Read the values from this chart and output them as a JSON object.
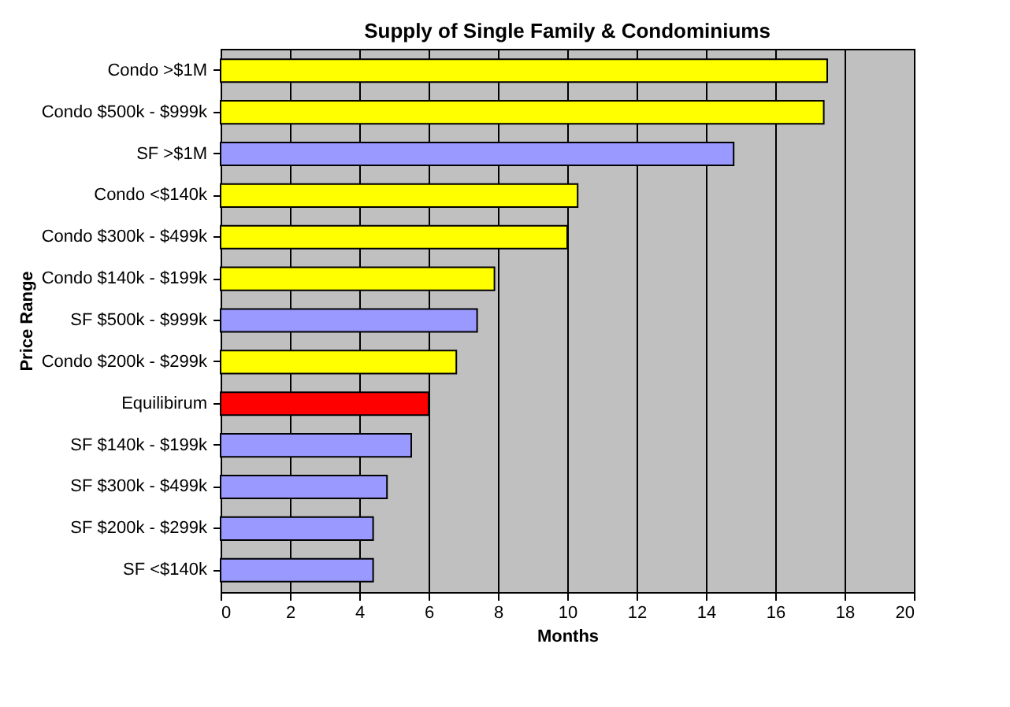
{
  "chart_data": {
    "type": "bar",
    "orientation": "horizontal",
    "title": "Supply of Single Family & Condominiums",
    "xlabel": "Months",
    "ylabel": "Price Range",
    "categories": [
      "Condo >$1M",
      "Condo $500k - $999k",
      "SF >$1M",
      "Condo <$140k",
      "Condo $300k - $499k",
      "Condo $140k - $199k",
      "SF $500k - $999k",
      "Condo $200k - $299k",
      "Equilibirum",
      "SF $140k - $199k",
      "SF $300k - $499k",
      "SF $200k - $299k",
      "SF <$140k"
    ],
    "values": [
      17.5,
      17.4,
      14.8,
      10.3,
      10.0,
      7.9,
      7.4,
      6.8,
      6.0,
      5.5,
      4.8,
      4.4,
      4.4
    ],
    "colors": [
      "#ffff00",
      "#ffff00",
      "#9999ff",
      "#ffff00",
      "#ffff00",
      "#ffff00",
      "#9999ff",
      "#ffff00",
      "#ff0000",
      "#9999ff",
      "#9999ff",
      "#9999ff",
      "#9999ff"
    ],
    "xlim": [
      0,
      20
    ],
    "xticks": [
      0,
      2,
      4,
      6,
      8,
      10,
      12,
      14,
      16,
      18,
      20
    ],
    "grid": "x"
  }
}
